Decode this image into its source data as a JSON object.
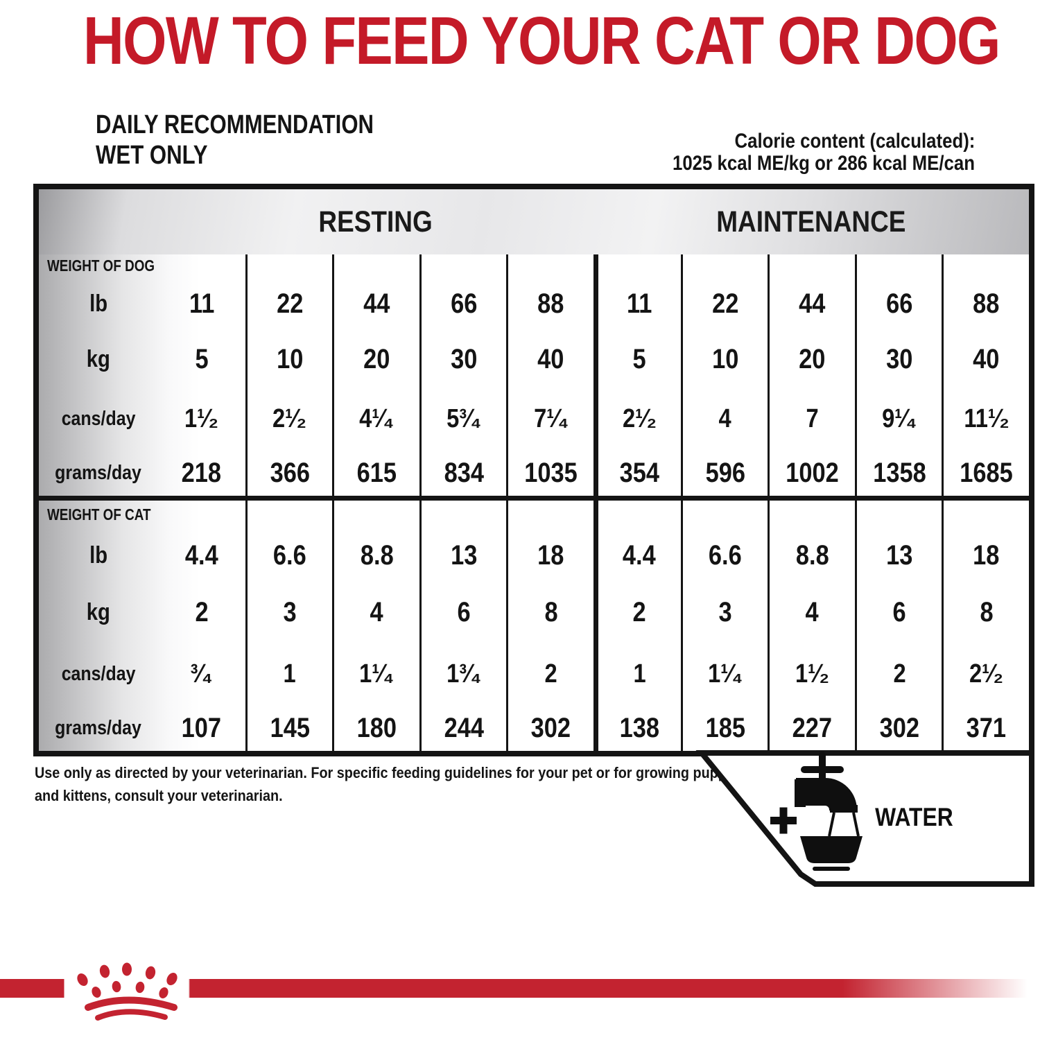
{
  "page": {
    "title": "HOW TO FEED YOUR CAT OR DOG"
  },
  "subtitle": {
    "line1": "DAILY RECOMMENDATION",
    "line2": "WET ONLY"
  },
  "calorie": {
    "line1": "Calorie content (calculated):",
    "line2": "1025 kcal ME/kg or  286 kcal ME/can"
  },
  "table": {
    "group_headers": {
      "resting": "RESTING",
      "maintenance": "MAINTENANCE"
    },
    "dog": {
      "section_label": "WEIGHT OF DOG",
      "rows": [
        {
          "label": "lb",
          "values": [
            "11",
            "22",
            "44",
            "66",
            "88",
            "11",
            "22",
            "44",
            "66",
            "88"
          ]
        },
        {
          "label": "kg",
          "values": [
            "5",
            "10",
            "20",
            "30",
            "40",
            "5",
            "10",
            "20",
            "30",
            "40"
          ]
        },
        {
          "label": "cans/day",
          "values": [
            "1¹⁄₂",
            "2¹⁄₂",
            "4¹⁄₄",
            "5³⁄₄",
            "7¹⁄₄",
            "2¹⁄₂",
            "4",
            "7",
            "9¹⁄₄",
            "11¹⁄₂"
          ]
        },
        {
          "label": "grams/day",
          "values": [
            "218",
            "366",
            "615",
            "834",
            "1035",
            "354",
            "596",
            "1002",
            "1358",
            "1685"
          ]
        }
      ]
    },
    "cat": {
      "section_label": "WEIGHT OF CAT",
      "rows": [
        {
          "label": "lb",
          "values": [
            "4.4",
            "6.6",
            "8.8",
            "13",
            "18",
            "4.4",
            "6.6",
            "8.8",
            "13",
            "18"
          ]
        },
        {
          "label": "kg",
          "values": [
            "2",
            "3",
            "4",
            "6",
            "8",
            "2",
            "3",
            "4",
            "6",
            "8"
          ]
        },
        {
          "label": "cans/day",
          "values": [
            "³⁄₄",
            "1",
            "1¹⁄₄",
            "1³⁄₄",
            "2",
            "1",
            "1¹⁄₄",
            "1¹⁄₂",
            "2",
            "2¹⁄₂"
          ]
        },
        {
          "label": "grams/day",
          "values": [
            "107",
            "145",
            "180",
            "244",
            "302",
            "138",
            "185",
            "227",
            "302",
            "371"
          ]
        }
      ]
    }
  },
  "footer": {
    "note_line1": "Use only as directed by your veterinarian. For specific feeding guidelines for your pet or for growing puppies",
    "note_line2": "and kittens, consult your veterinarian."
  },
  "water": {
    "label": "WATER"
  },
  "icons": {
    "plus": "plus-icon",
    "tap": "water-tap-bowl-icon",
    "logo": "royal-canin-crown-logo"
  },
  "colors": {
    "brand_red": "#c41a28",
    "band_red": "#c32330",
    "ink_black": "#141414"
  }
}
